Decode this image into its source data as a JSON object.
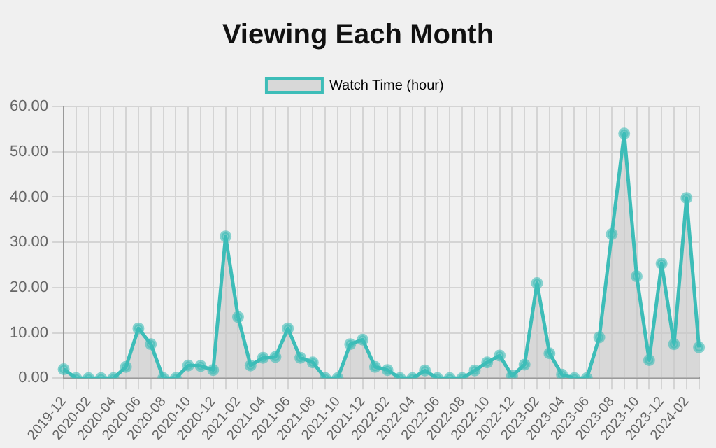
{
  "chart_data": {
    "type": "area",
    "title": "Viewing Each Month",
    "categories": [
      "2019-12",
      null,
      "2020-02",
      null,
      "2020-04",
      null,
      "2020-06",
      null,
      "2020-08",
      null,
      "2020-10",
      null,
      "2020-12",
      null,
      "2021-02",
      null,
      "2021-04",
      null,
      "2021-06",
      null,
      "2021-08",
      null,
      "2021-10",
      null,
      "2021-12",
      null,
      "2022-02",
      null,
      "2022-04",
      null,
      "2022-06",
      null,
      "2022-08",
      null,
      "2022-10",
      null,
      "2022-12",
      null,
      "2023-02",
      null,
      "2023-04",
      null,
      "2023-06",
      null,
      "2023-08",
      null,
      "2023-10",
      null,
      "2023-12",
      null,
      "2024-02",
      null
    ],
    "series": [
      {
        "name": "Watch Time (hour)",
        "color": "#3dbdb8",
        "values": [
          2,
          0,
          0,
          0,
          0,
          2.5,
          11,
          7.5,
          0,
          0,
          2.8,
          2.7,
          1.8,
          31.3,
          13.5,
          2.8,
          4.5,
          4.7,
          11,
          4.5,
          3.5,
          0,
          0,
          7.5,
          8.5,
          2.5,
          1.8,
          0,
          0,
          1.7,
          0,
          0,
          0,
          1.7,
          3.5,
          5,
          0.5,
          3,
          21,
          5.5,
          0.8,
          0,
          0,
          9,
          31.8,
          54,
          22.5,
          4,
          25.3,
          7.5,
          39.8,
          6.8
        ]
      }
    ],
    "ylim": [
      0,
      60
    ],
    "yticks": [
      {
        "value": 0,
        "label": "0.00"
      },
      {
        "value": 10,
        "label": "10.00"
      },
      {
        "value": 20,
        "label": "20.00"
      },
      {
        "value": 30,
        "label": "30.00"
      },
      {
        "value": 40,
        "label": "40.00"
      },
      {
        "value": 50,
        "label": "50.00"
      },
      {
        "value": 60,
        "label": "60.00"
      }
    ],
    "grid": true,
    "legend": "top",
    "marker": "circle"
  }
}
